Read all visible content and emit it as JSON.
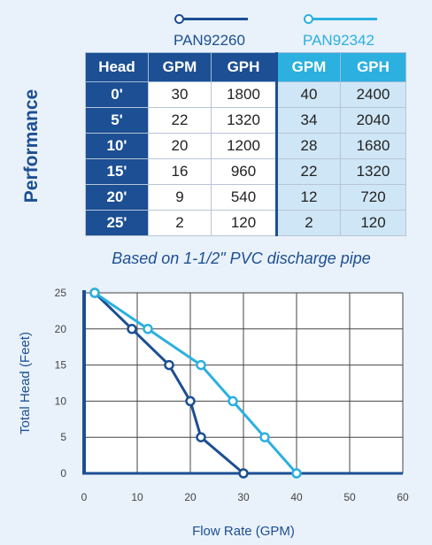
{
  "legend": [
    {
      "name": "PAN92260",
      "color": "#1c4f93"
    },
    {
      "name": "PAN92342",
      "color": "#2bb0e0"
    }
  ],
  "side_title": "Performance",
  "table": {
    "headers": [
      "Head",
      "GPM",
      "GPH",
      "GPM",
      "GPH"
    ],
    "rows": [
      [
        "0'",
        "30",
        "1800",
        "40",
        "2400"
      ],
      [
        "5'",
        "22",
        "1320",
        "34",
        "2040"
      ],
      [
        "10'",
        "20",
        "1200",
        "28",
        "1680"
      ],
      [
        "15'",
        "16",
        "960",
        "22",
        "1320"
      ],
      [
        "20'",
        "9",
        "540",
        "12",
        "720"
      ],
      [
        "25'",
        "2",
        "120",
        "2",
        "120"
      ]
    ]
  },
  "note": "Based on 1-1/2\" PVC discharge pipe",
  "chart_data": {
    "type": "line",
    "xlabel": "Flow Rate (GPM)",
    "ylabel": "Total Head (Feet)",
    "xlim": [
      0,
      60
    ],
    "ylim": [
      0,
      25
    ],
    "xticks": [
      "0",
      "10",
      "20",
      "30",
      "40",
      "50",
      "60"
    ],
    "yticks": [
      "0",
      "5",
      "10",
      "15",
      "20",
      "25"
    ],
    "grid": true,
    "series": [
      {
        "name": "PAN92260",
        "color": "#1c4f93",
        "x": [
          30,
          22,
          20,
          16,
          9,
          2
        ],
        "y": [
          0,
          5,
          10,
          15,
          20,
          25
        ]
      },
      {
        "name": "PAN92342",
        "color": "#2bb0e0",
        "x": [
          40,
          34,
          28,
          22,
          12,
          2
        ],
        "y": [
          0,
          5,
          10,
          15,
          20,
          25
        ]
      }
    ]
  }
}
